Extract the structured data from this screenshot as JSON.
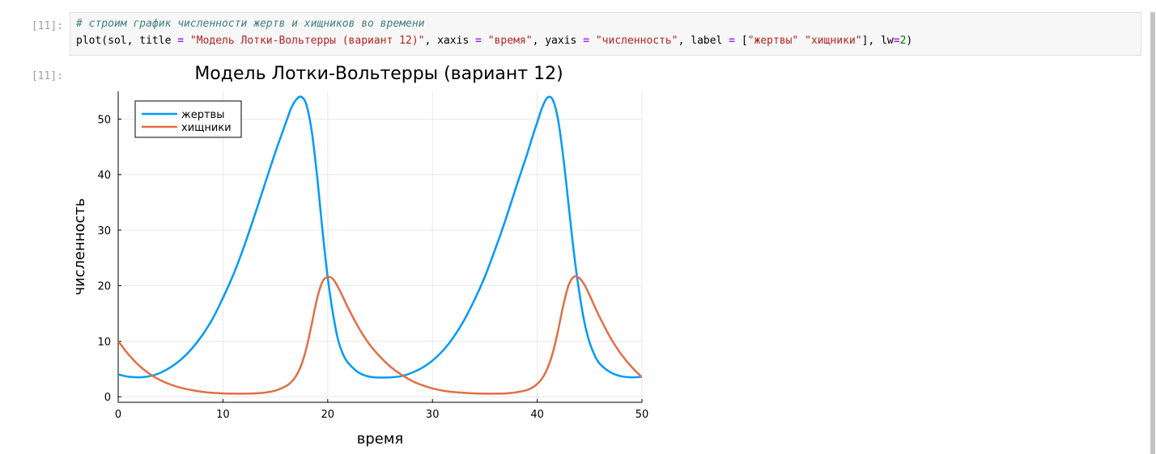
{
  "cell": {
    "in_prompt": "[11]:",
    "out_prompt": "[11]:",
    "comment": "# строим график численности жертв и хищников во времени",
    "code": {
      "p1": "plot(sol, title ",
      "eq1": "=",
      "p2": " ",
      "s1": "\"Модель Лотки-Вольтерры (вариант 12)\"",
      "p3": ", xaxis ",
      "eq2": "=",
      "p4": " ",
      "s2": "\"время\"",
      "p5": ", yaxis ",
      "eq3": "=",
      "p6": " ",
      "s3": "\"численность\"",
      "p7": ", label ",
      "eq4": "=",
      "p8": " [",
      "s4": "\"жертвы\"",
      "p9": " ",
      "s5": "\"хищники\"",
      "p10": "], lw",
      "eq5": "=",
      "n1": "2",
      "p11": ")"
    }
  },
  "colors": {
    "prey": "#009af9",
    "predator": "#e26f46",
    "grid": "#e8e8e8",
    "axis": "#000000"
  },
  "chart_data": {
    "type": "line",
    "title": "Модель Лотки-Вольтерры (вариант 12)",
    "xlabel": "время",
    "ylabel": "численность",
    "xlim": [
      0,
      50
    ],
    "ylim": [
      -1,
      55
    ],
    "xticks": [
      0,
      10,
      20,
      30,
      40,
      50
    ],
    "yticks": [
      0,
      10,
      20,
      30,
      40,
      50
    ],
    "grid": true,
    "legend_position": "top-left",
    "series": [
      {
        "name": "жертвы",
        "color": "#009af9",
        "x": [
          0,
          1,
          2,
          3,
          4,
          5,
          6,
          7,
          8,
          9,
          10,
          11,
          12,
          13,
          14,
          15,
          16,
          16.5,
          17,
          17.5,
          18,
          18.5,
          19,
          19.5,
          20,
          20.5,
          21,
          21.5,
          22,
          23,
          24,
          25,
          26,
          27,
          28,
          29,
          30,
          31,
          32,
          33,
          34,
          35,
          36,
          37,
          38,
          39,
          39.5,
          40,
          40.5,
          41,
          41.5,
          42,
          42.5,
          43,
          43.5,
          44,
          44.5,
          45,
          45.5,
          46,
          47,
          48,
          49,
          50
        ],
        "y": [
          4,
          3.6,
          3.5,
          3.7,
          4.3,
          5.3,
          6.7,
          8.6,
          11,
          14,
          17.8,
          22,
          27,
          32.5,
          38.3,
          44,
          49.3,
          51.9,
          53.5,
          54,
          52.4,
          47.5,
          39.5,
          30,
          21.5,
          15,
          10.2,
          7.5,
          6,
          4.3,
          3.6,
          3.45,
          3.5,
          3.7,
          4.3,
          5.2,
          6.5,
          8.3,
          10.7,
          13.7,
          17.4,
          21.6,
          26.6,
          32,
          37.8,
          43.5,
          46.5,
          49.4,
          52.2,
          53.9,
          53.4,
          49.8,
          43,
          34.5,
          26,
          19,
          13.5,
          9.8,
          7.4,
          5.9,
          4.4,
          3.7,
          3.5,
          3.6
        ]
      },
      {
        "name": "хищники",
        "color": "#e26f46",
        "x": [
          0,
          1,
          2,
          3,
          4,
          5,
          6,
          7,
          8,
          9,
          10,
          11,
          12,
          13,
          14,
          15,
          16,
          16.5,
          17,
          17.5,
          18,
          18.5,
          19,
          19.5,
          20,
          20.5,
          21,
          21.5,
          22,
          23,
          24,
          25,
          26,
          27,
          28,
          29,
          30,
          31,
          32,
          33,
          34,
          35,
          36,
          37,
          38,
          39,
          39.5,
          40,
          40.5,
          41,
          41.5,
          42,
          42.5,
          43,
          43.5,
          44,
          44.5,
          45,
          45.5,
          46,
          47,
          48,
          49,
          50
        ],
        "y": [
          10,
          7.6,
          5.6,
          4.1,
          3,
          2.2,
          1.6,
          1.2,
          0.9,
          0.7,
          0.6,
          0.55,
          0.55,
          0.6,
          0.75,
          1.1,
          1.9,
          2.6,
          3.8,
          5.8,
          9,
          13.3,
          17.8,
          20.7,
          21.6,
          21.2,
          19.7,
          17.8,
          15.8,
          12.3,
          9.4,
          7.2,
          5.4,
          4,
          2.9,
          2.1,
          1.5,
          1.1,
          0.85,
          0.7,
          0.6,
          0.55,
          0.55,
          0.6,
          0.8,
          1.2,
          1.6,
          2.3,
          3.4,
          5.2,
          8,
          12,
          16.5,
          20.1,
          21.6,
          21.4,
          20.2,
          18.3,
          16.2,
          14.2,
          10.6,
          7.7,
          5.4,
          3.5
        ]
      }
    ]
  }
}
